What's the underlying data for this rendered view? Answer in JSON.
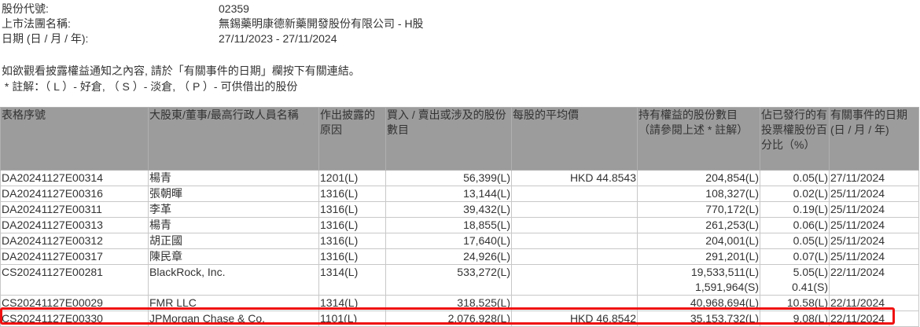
{
  "info": [
    {
      "label": "股份代號:",
      "value": "02359"
    },
    {
      "label": "上市法團名稱:",
      "value": "無錫藥明康德新藥開發股份有限公司 - H股"
    },
    {
      "label": "日期 (日 / 月 / 年):",
      "value": "27/11/2023 - 27/11/2024"
    }
  ],
  "note1": "如欲觀看披露權益通知之內容, 請於「有關事件的日期」欄按下有關連結。",
  "note2": " * 註解：（ L ）- 好倉, （ S ）- 淡倉, （ P ）- 可供借出的股份",
  "headers": [
    "表格序號",
    "大股東/董事/最高行政人員名稱",
    "作出披露的原因",
    "買入 / 賣出或涉及的股份數目",
    "每股的平均價",
    "持有權益的股份數目（請參閱上述 * 註解）",
    "佔已發行的有投票權股份百分比（%）",
    "有關事件的日期(日 / 月 / 年)"
  ],
  "rows": [
    {
      "id": "DA20241127E00314",
      "name": "楊青",
      "reason": "1201(L)",
      "shares": "56,399(L)",
      "price": "HKD 44.8543",
      "held": "204,854(L)",
      "held2": "",
      "pct": "0.05(L)",
      "pct2": "",
      "date": "27/11/2024"
    },
    {
      "id": "DA20241127E00316",
      "name": "張朝暉",
      "reason": "1316(L)",
      "shares": "13,144(L)",
      "price": "",
      "held": "108,327(L)",
      "held2": "",
      "pct": "0.02(L)",
      "pct2": "",
      "date": "25/11/2024"
    },
    {
      "id": "DA20241127E00311",
      "name": "李革",
      "reason": "1316(L)",
      "shares": "39,432(L)",
      "price": "",
      "held": "770,172(L)",
      "held2": "",
      "pct": "0.19(L)",
      "pct2": "",
      "date": "25/11/2024"
    },
    {
      "id": "DA20241127E00313",
      "name": "楊青",
      "reason": "1316(L)",
      "shares": "18,855(L)",
      "price": "",
      "held": "261,253(L)",
      "held2": "",
      "pct": "0.06(L)",
      "pct2": "",
      "date": "25/11/2024"
    },
    {
      "id": "DA20241127E00312",
      "name": "胡正國",
      "reason": "1316(L)",
      "shares": "17,640(L)",
      "price": "",
      "held": "204,001(L)",
      "held2": "",
      "pct": "0.05(L)",
      "pct2": "",
      "date": "25/11/2024"
    },
    {
      "id": "DA20241127E00317",
      "name": "陳民章",
      "reason": "1316(L)",
      "shares": "24,926(L)",
      "price": "",
      "held": "291,201(L)",
      "held2": "",
      "pct": "0.07(L)",
      "pct2": "",
      "date": "25/11/2024"
    },
    {
      "id": "CS20241127E00281",
      "name": "BlackRock, Inc.",
      "reason": "1314(L)",
      "shares": "533,272(L)",
      "price": "",
      "held": "19,533,511(L)",
      "held2": "1,591,964(S)",
      "pct": "5.05(L)",
      "pct2": "0.41(S)",
      "date": "22/11/2024"
    },
    {
      "id": "CS20241127E00029",
      "name": "FMR LLC",
      "reason": "1314(L)",
      "shares": "318,525(L)",
      "price": "",
      "held": "40,968,694(L)",
      "held2": "",
      "pct": "10.58(L)",
      "pct2": "",
      "date": "22/11/2024"
    },
    {
      "id": "CS20241127E00330",
      "name": "JPMorgan Chase & Co.",
      "reason": "1101(L)",
      "shares": "2,076,928(L)",
      "price": "HKD 46.8542",
      "held": "35,153,732(L)",
      "held2": "",
      "pct": "9.08(L)",
      "pct2": "",
      "date": "22/11/2024"
    }
  ],
  "highlight_color": "#f01010"
}
